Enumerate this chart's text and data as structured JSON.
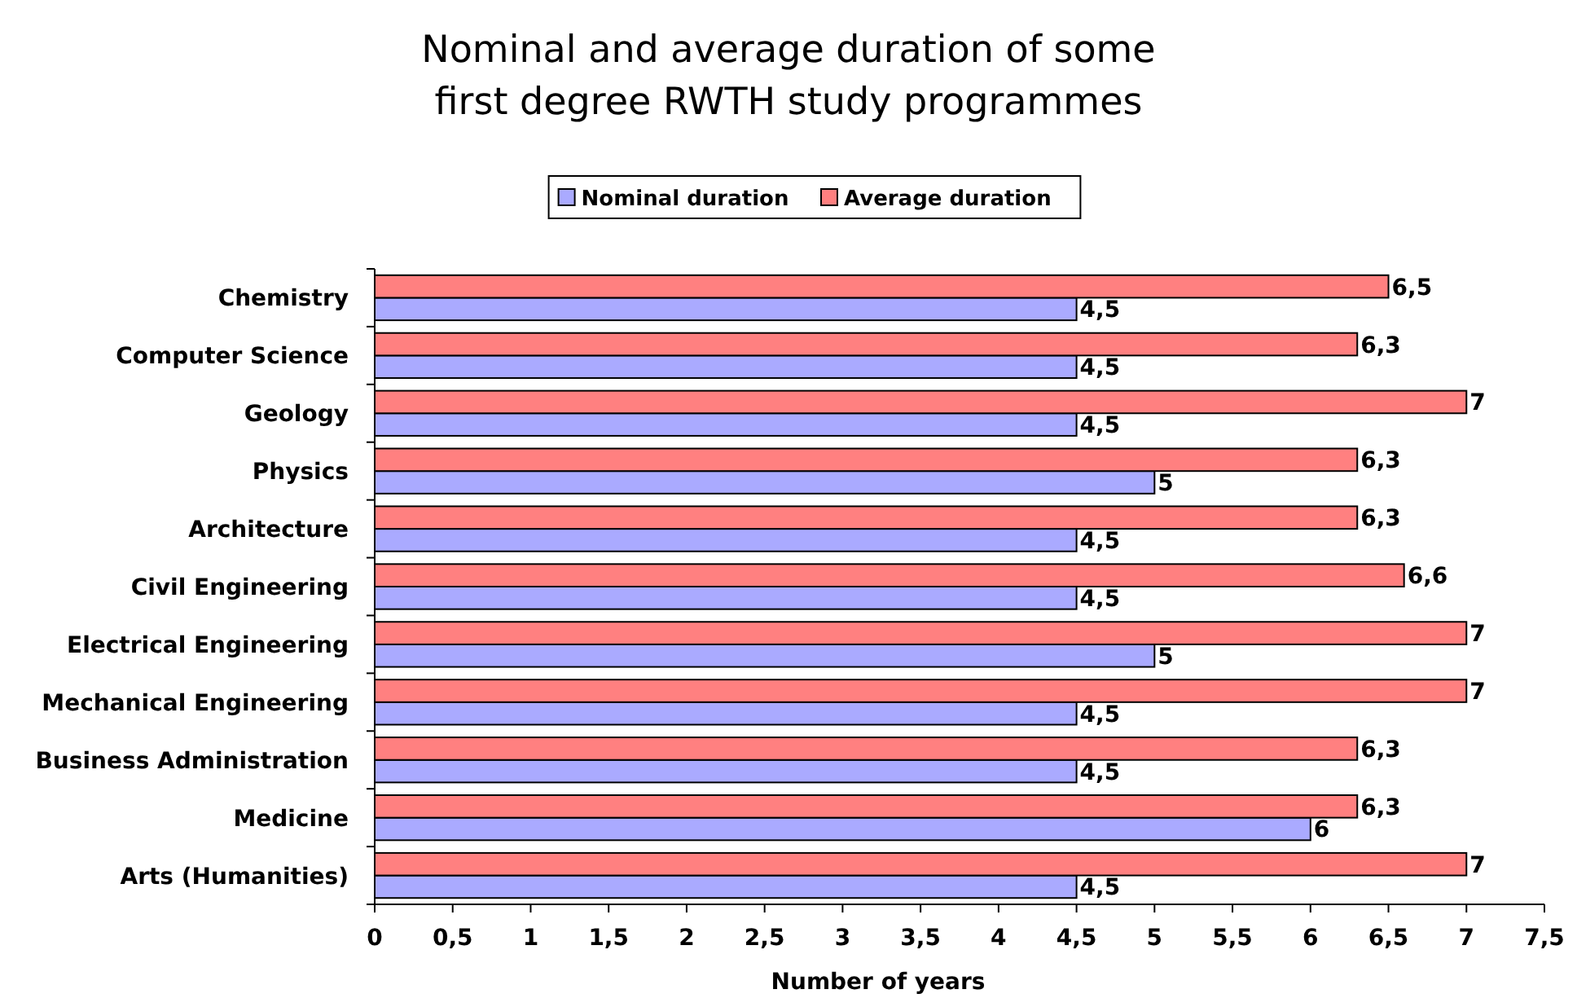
{
  "chart_data": {
    "type": "bar",
    "orientation": "horizontal",
    "title": "Nominal and average duration of some\nfirst degree RWTH study programmes",
    "xlabel": "Number of years",
    "categories": [
      "Chemistry",
      "Computer Science",
      "Geology",
      "Physics",
      "Architecture",
      "Civil Engineering",
      "Electrical Engineering",
      "Mechanical Engineering",
      "Business Administration",
      "Medicine",
      "Arts (Humanities)"
    ],
    "series": [
      {
        "name": "Nominal duration",
        "color": "#aaaaff",
        "values": [
          4.5,
          4.5,
          4.5,
          5,
          4.5,
          4.5,
          5,
          4.5,
          4.5,
          6,
          4.5
        ],
        "value_labels": [
          "4,5",
          "4,5",
          "4,5",
          "5",
          "4,5",
          "4,5",
          "5",
          "4,5",
          "4,5",
          "6",
          "4,5"
        ]
      },
      {
        "name": "Average duration",
        "color": "#ff8080",
        "values": [
          6.5,
          6.3,
          7,
          6.3,
          6.3,
          6.6,
          7,
          7,
          6.3,
          6.3,
          7
        ],
        "value_labels": [
          "6,5",
          "6,3",
          "7",
          "6,3",
          "6,3",
          "6,6",
          "7",
          "7",
          "6,3",
          "6,3",
          "7"
        ]
      }
    ],
    "xlim": [
      0,
      7.5
    ],
    "xticks": [
      0,
      {
        "value": 0.5,
        "label": "0,5"
      },
      1,
      {
        "value": 1.5,
        "label": "1,5"
      },
      2,
      {
        "value": 2.5,
        "label": "2,5"
      },
      3,
      {
        "value": 3.5,
        "label": "3,5"
      },
      4,
      {
        "value": 4.5,
        "label": "4,5"
      },
      5,
      {
        "value": 5.5,
        "label": "5,5"
      },
      6,
      {
        "value": 6.5,
        "label": "6,5"
      },
      7,
      {
        "value": 7.5,
        "label": "7,5"
      }
    ],
    "legend": "top",
    "grid": false
  }
}
